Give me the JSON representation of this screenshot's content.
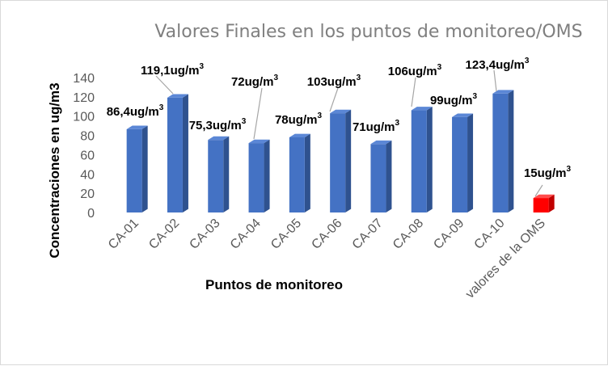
{
  "chart_data": {
    "type": "bar",
    "title": "Valores Finales en los puntos de monitoreo/OMS",
    "xlabel": "Puntos de monitoreo",
    "ylabel": "Concentraciones en  ug/m3",
    "ylim": [
      0,
      140
    ],
    "yticks": [
      "0",
      "20",
      "40",
      "60",
      "80",
      "100",
      "120",
      "140"
    ],
    "grid": false,
    "categories": [
      "CA-01",
      "CA-02",
      "CA-03",
      "CA-04",
      "CA-05",
      "CA-06",
      "CA-07",
      "CA-08",
      "CA-09",
      "CA-10",
      "valores de la OMS"
    ],
    "values": [
      86.4,
      119.1,
      75.3,
      72,
      78,
      103,
      71,
      106,
      99,
      123.4,
      15
    ],
    "data_labels": [
      "86,4ug/m",
      "119,1ug/m",
      "75,3ug/m",
      "72ug/m",
      "78ug/m",
      "103ug/m",
      "71ug/m",
      "106ug/m",
      "99ug/m",
      "123,4ug/m",
      "15ug/m"
    ],
    "data_label_superscript": "3",
    "colors": {
      "bar_front": "#4472c4",
      "bar_side": "#2f528f",
      "bar_top": "#5b87d6",
      "oms_front": "#ff0000",
      "oms_side": "#c00000",
      "oms_top": "#ff4d4d",
      "leader": "#a6a6a6"
    }
  }
}
